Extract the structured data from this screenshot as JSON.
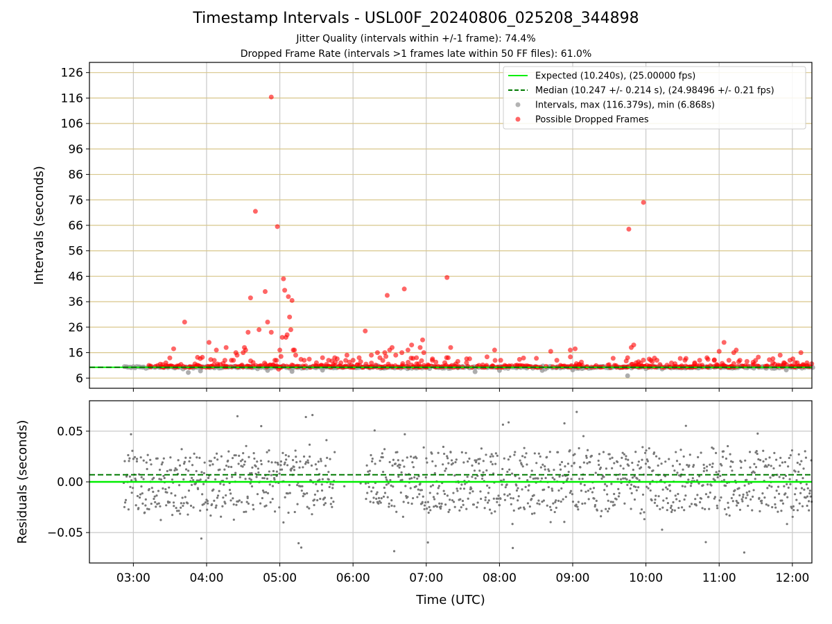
{
  "figure": {
    "title": "Timestamp Intervals - USL00F_20240806_025208_344898",
    "subtitle_1": "Jitter Quality (intervals within +/-1 frame): 74.4%",
    "subtitle_2": "Dropped Frame Rate (intervals >1 frames late within 50 FF files): 61.0%"
  },
  "colors": {
    "expected": "#00ee00",
    "median": "#007a00",
    "intervals": "#999999",
    "dropped": "#ff0000",
    "residual_points": "#777777",
    "hline_grid": "#d8c68a",
    "vline_grid": "#c8c8c8"
  },
  "chart_data": [
    {
      "type": "scatter",
      "name": "intervals",
      "ylabel": "Intervals (seconds)",
      "xlabel": "",
      "x_range_utc": [
        "02:24",
        "12:16"
      ],
      "ylim": [
        2,
        130
      ],
      "y_ticks": [
        6,
        16,
        26,
        36,
        46,
        56,
        66,
        76,
        86,
        96,
        106,
        116,
        126
      ],
      "x_ticks": [
        "03:00",
        "04:00",
        "05:00",
        "06:00",
        "07:00",
        "08:00",
        "09:00",
        "10:00",
        "11:00",
        "12:00"
      ],
      "grid": {
        "horizontal": true,
        "vertical": true
      },
      "legend_position": "upper right",
      "legend": [
        "Expected (10.240s), (25.00000 fps)",
        "Median (10.247 +/- 0.214 s), (24.98496 +/- 0.21 fps)",
        "Intervals, max (116.379s), min (6.868s)",
        "Possible Dropped Frames"
      ],
      "expected_interval": 10.24,
      "median_interval": 10.247,
      "series_time_range_utc": [
        "02:52",
        "12:16"
      ],
      "dropped_outliers": [
        {
          "x": "03:33",
          "y": 17.5
        },
        {
          "x": "03:42",
          "y": 28
        },
        {
          "x": "04:02",
          "y": 20
        },
        {
          "x": "04:08",
          "y": 17
        },
        {
          "x": "04:15",
          "y": 13
        },
        {
          "x": "04:16",
          "y": 18
        },
        {
          "x": "04:22",
          "y": 13
        },
        {
          "x": "04:24",
          "y": 16
        },
        {
          "x": "04:25",
          "y": 15
        },
        {
          "x": "04:30",
          "y": 16
        },
        {
          "x": "04:31",
          "y": 18
        },
        {
          "x": "04:32",
          "y": 17
        },
        {
          "x": "04:34",
          "y": 24
        },
        {
          "x": "04:36",
          "y": 37.5
        },
        {
          "x": "04:40",
          "y": 71.5
        },
        {
          "x": "04:43",
          "y": 25
        },
        {
          "x": "04:48",
          "y": 40
        },
        {
          "x": "04:50",
          "y": 28
        },
        {
          "x": "04:53",
          "y": 24
        },
        {
          "x": "04:56",
          "y": 13
        },
        {
          "x": "04:59",
          "y": 9.5
        },
        {
          "x": "04:53",
          "y": 116.4
        },
        {
          "x": "04:58",
          "y": 65.5
        },
        {
          "x": "05:00",
          "y": 17
        },
        {
          "x": "05:02",
          "y": 22
        },
        {
          "x": "05:03",
          "y": 45
        },
        {
          "x": "05:04",
          "y": 40.5
        },
        {
          "x": "05:05",
          "y": 22
        },
        {
          "x": "05:06",
          "y": 23
        },
        {
          "x": "05:07",
          "y": 38
        },
        {
          "x": "05:08",
          "y": 30
        },
        {
          "x": "05:09",
          "y": 25
        },
        {
          "x": "05:10",
          "y": 36.5
        },
        {
          "x": "05:11",
          "y": 17
        },
        {
          "x": "05:12",
          "y": 17
        },
        {
          "x": "05:13",
          "y": 15
        },
        {
          "x": "05:20",
          "y": 13
        },
        {
          "x": "05:30",
          "y": 12
        },
        {
          "x": "05:35",
          "y": 14
        },
        {
          "x": "05:40",
          "y": 13
        },
        {
          "x": "05:45",
          "y": 14
        },
        {
          "x": "05:50",
          "y": 12
        },
        {
          "x": "05:55",
          "y": 15
        },
        {
          "x": "06:00",
          "y": 13
        },
        {
          "x": "06:05",
          "y": 14
        },
        {
          "x": "06:10",
          "y": 24.5
        },
        {
          "x": "06:15",
          "y": 15
        },
        {
          "x": "06:20",
          "y": 16
        },
        {
          "x": "06:22",
          "y": 14
        },
        {
          "x": "06:26",
          "y": 16
        },
        {
          "x": "06:28",
          "y": 38.5
        },
        {
          "x": "06:30",
          "y": 17
        },
        {
          "x": "06:32",
          "y": 18
        },
        {
          "x": "06:35",
          "y": 15
        },
        {
          "x": "06:40",
          "y": 16
        },
        {
          "x": "06:42",
          "y": 41
        },
        {
          "x": "06:45",
          "y": 17
        },
        {
          "x": "06:48",
          "y": 19
        },
        {
          "x": "06:52",
          "y": 14
        },
        {
          "x": "06:55",
          "y": 18
        },
        {
          "x": "06:57",
          "y": 21
        },
        {
          "x": "06:58",
          "y": 16
        },
        {
          "x": "07:05",
          "y": 13
        },
        {
          "x": "07:17",
          "y": 45.5
        },
        {
          "x": "07:20",
          "y": 18
        },
        {
          "x": "07:18",
          "y": 14
        },
        {
          "x": "07:33",
          "y": 12
        },
        {
          "x": "07:56",
          "y": 17
        },
        {
          "x": "08:01",
          "y": 13
        },
        {
          "x": "08:08",
          "y": 10.5
        },
        {
          "x": "08:42",
          "y": 16.5
        },
        {
          "x": "08:47",
          "y": 13
        },
        {
          "x": "08:50",
          "y": 11
        },
        {
          "x": "08:58",
          "y": 17
        },
        {
          "x": "09:02",
          "y": 17.5
        },
        {
          "x": "09:45",
          "y": 14
        },
        {
          "x": "09:46",
          "y": 64.5
        },
        {
          "x": "09:48",
          "y": 18
        },
        {
          "x": "09:50",
          "y": 19
        },
        {
          "x": "09:52",
          "y": 12
        },
        {
          "x": "09:58",
          "y": 75
        },
        {
          "x": "10:04",
          "y": 13
        },
        {
          "x": "10:09",
          "y": 13
        },
        {
          "x": "10:32",
          "y": 13
        },
        {
          "x": "10:40",
          "y": 12
        },
        {
          "x": "10:44",
          "y": 13
        },
        {
          "x": "10:50",
          "y": 14
        },
        {
          "x": "10:56",
          "y": 13
        },
        {
          "x": "11:00",
          "y": 16.5
        },
        {
          "x": "11:04",
          "y": 20
        },
        {
          "x": "11:08",
          "y": 13
        },
        {
          "x": "11:12",
          "y": 16
        },
        {
          "x": "11:14",
          "y": 17
        },
        {
          "x": "11:17",
          "y": 13
        },
        {
          "x": "11:44",
          "y": 12
        },
        {
          "x": "11:50",
          "y": 15
        },
        {
          "x": "11:53",
          "y": 12
        },
        {
          "x": "11:58",
          "y": 13
        },
        {
          "x": "12:04",
          "y": 12
        },
        {
          "x": "12:07",
          "y": 16
        },
        {
          "x": "12:12",
          "y": 11
        }
      ],
      "low_intervals": [
        {
          "x": "03:45",
          "y": 8.2
        },
        {
          "x": "03:55",
          "y": 8.8
        },
        {
          "x": "04:50",
          "y": 9.0
        },
        {
          "x": "05:10",
          "y": 8.6
        },
        {
          "x": "05:35",
          "y": 9.1
        },
        {
          "x": "07:40",
          "y": 8.5
        },
        {
          "x": "08:00",
          "y": 9.0
        },
        {
          "x": "08:35",
          "y": 9.0
        },
        {
          "x": "09:00",
          "y": 9.2
        },
        {
          "x": "09:45",
          "y": 6.9
        },
        {
          "x": "11:55",
          "y": 9.2
        }
      ]
    },
    {
      "type": "scatter",
      "name": "residuals",
      "ylabel": "Residuals (seconds)",
      "xlabel": "Time (UTC)",
      "ylim": [
        -0.08,
        0.08
      ],
      "y_ticks": [
        -0.05,
        0.0,
        0.05
      ],
      "y_tick_labels": [
        "−0.05",
        "0.00",
        "0.05"
      ],
      "x_ticks": [
        "03:00",
        "04:00",
        "05:00",
        "06:00",
        "07:00",
        "08:00",
        "09:00",
        "10:00",
        "11:00",
        "12:00"
      ],
      "grid": {
        "horizontal": true,
        "vertical": true
      },
      "expected_residual": 0.0,
      "median_residual": 0.007,
      "residual_clusters": [
        0.02,
        0.0,
        -0.02
      ],
      "data_gap_utc": [
        "05:45",
        "06:10"
      ]
    }
  ]
}
